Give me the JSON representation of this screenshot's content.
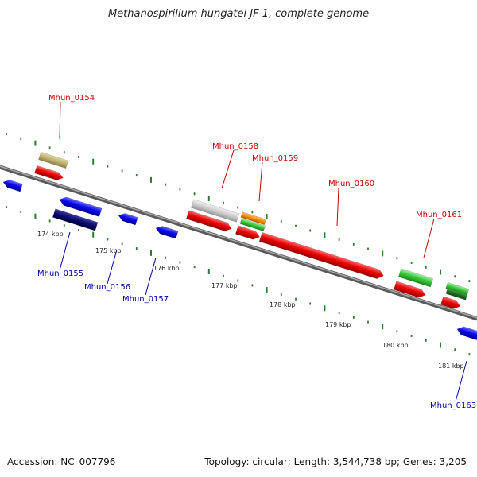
{
  "title": "Methanospirillum hungatei JF-1, complete genome",
  "footer": {
    "accession": "Accession: NC_007796",
    "summary": "Topology: circular; Length: 3,544,738 bp; Genes: 3,205"
  },
  "colors": {
    "forward_label": "#cc0000",
    "reverse_label": "#0000aa",
    "backbone": "#707070",
    "ticks": "#2e7d32"
  },
  "gene_labels": [
    {
      "id": "Mhun_0154",
      "strand": "forward"
    },
    {
      "id": "Mhun_0158",
      "strand": "forward"
    },
    {
      "id": "Mhun_0159",
      "strand": "forward"
    },
    {
      "id": "Mhun_0160",
      "strand": "forward"
    },
    {
      "id": "Mhun_0161",
      "strand": "forward"
    },
    {
      "id": "Mhun_0155",
      "strand": "reverse"
    },
    {
      "id": "Mhun_0156",
      "strand": "reverse"
    },
    {
      "id": "Mhun_0157",
      "strand": "reverse"
    },
    {
      "id": "Mhun_0163",
      "strand": "reverse"
    }
  ],
  "scale_labels": [
    "174 kbp",
    "175 kbp",
    "176 kbp",
    "177 kbp",
    "178 kbp",
    "179 kbp",
    "180 kbp",
    "181 kbp"
  ]
}
